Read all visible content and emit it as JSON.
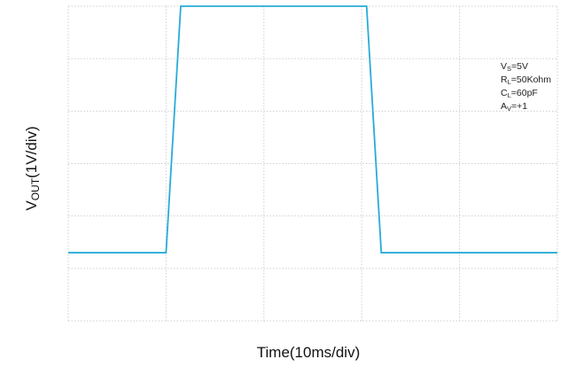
{
  "chart_data": {
    "type": "line",
    "xlabel": "Time(10ms/div)",
    "ylabel": {
      "prefix": "V",
      "subscript": "OUT",
      "suffix": "(1V/div)"
    },
    "x_divisions": 5,
    "y_divisions": 6,
    "grid": true,
    "xlim": [
      0,
      50
    ],
    "ylim": [
      0,
      6
    ],
    "x_unit": "ms",
    "y_unit": "V",
    "series": [
      {
        "color": "#29abd8",
        "x": [
          0,
          10,
          11.5,
          30.5,
          32,
          50
        ],
        "y": [
          1.3,
          1.3,
          6.0,
          6.0,
          1.3,
          1.3
        ]
      }
    ],
    "annotations": [
      {
        "main": "V",
        "sub": "S",
        "rest": "=5V"
      },
      {
        "main": "R",
        "sub": "L",
        "rest": "=50Kohm"
      },
      {
        "main": "C",
        "sub": "L",
        "rest": "=60pF"
      },
      {
        "main": "A",
        "sub": "V",
        "rest": "=+1"
      }
    ]
  }
}
